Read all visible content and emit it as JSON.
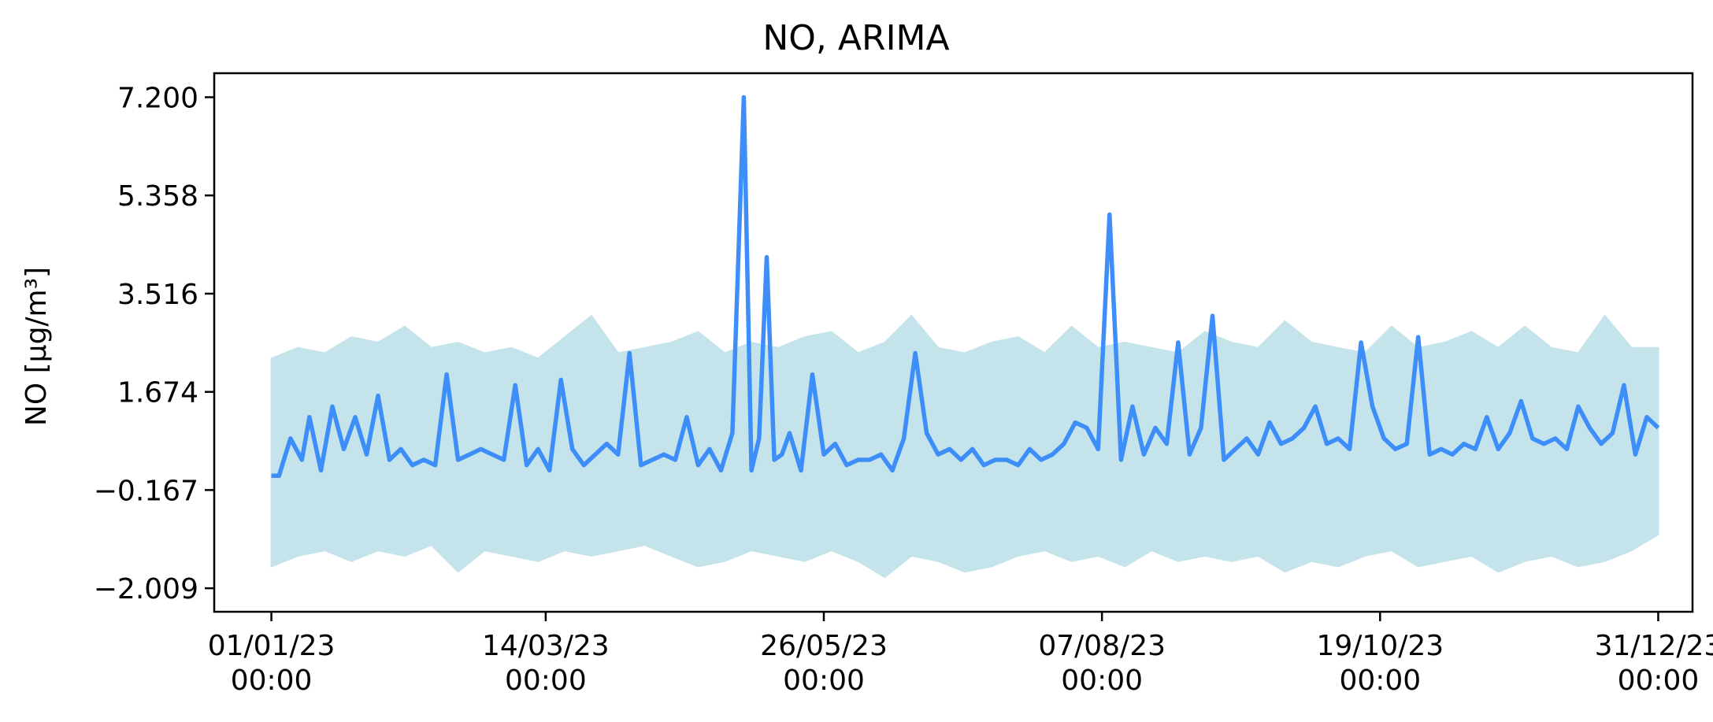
{
  "chart_data": {
    "type": "line",
    "title": "NO, ARIMA",
    "xlabel": "",
    "ylabel": "NO [µg/m³]",
    "ylim": [
      -2.45,
      7.65
    ],
    "xlim": [
      "2022-12-17",
      "2024-01-09"
    ],
    "grid": false,
    "legend": "none",
    "y_ticks": [
      "7.200",
      "5.358",
      "3.516",
      "1.674",
      "−0.167",
      "−2.009"
    ],
    "y_tick_values": [
      7.2,
      5.358,
      3.516,
      1.674,
      -0.167,
      -2.009
    ],
    "x_ticks": [
      {
        "date": "2023-01-01",
        "label": [
          "01/01/23",
          "00:00"
        ]
      },
      {
        "date": "2023-03-14",
        "label": [
          "14/03/23",
          "00:00"
        ]
      },
      {
        "date": "2023-05-26",
        "label": [
          "26/05/23",
          "00:00"
        ]
      },
      {
        "date": "2023-08-07",
        "label": [
          "07/08/23",
          "00:00"
        ]
      },
      {
        "date": "2023-10-19",
        "label": [
          "19/10/23",
          "00:00"
        ]
      },
      {
        "date": "2023-12-31",
        "label": [
          "31/12/23",
          "00:00"
        ]
      }
    ],
    "series": [
      {
        "color": "#c5e3ea",
        "kind": "band",
        "x": [
          "2023-01-01",
          "2023-01-08",
          "2023-01-15",
          "2023-01-22",
          "2023-01-29",
          "2023-02-05",
          "2023-02-12",
          "2023-02-19",
          "2023-02-26",
          "2023-03-05",
          "2023-03-12",
          "2023-03-19",
          "2023-03-26",
          "2023-04-02",
          "2023-04-09",
          "2023-04-16",
          "2023-04-23",
          "2023-04-30",
          "2023-05-07",
          "2023-05-14",
          "2023-05-21",
          "2023-05-28",
          "2023-06-04",
          "2023-06-11",
          "2023-06-18",
          "2023-06-25",
          "2023-07-02",
          "2023-07-09",
          "2023-07-16",
          "2023-07-23",
          "2023-07-30",
          "2023-08-06",
          "2023-08-13",
          "2023-08-20",
          "2023-08-27",
          "2023-09-03",
          "2023-09-10",
          "2023-09-17",
          "2023-09-24",
          "2023-10-01",
          "2023-10-08",
          "2023-10-15",
          "2023-10-22",
          "2023-10-29",
          "2023-11-05",
          "2023-11-12",
          "2023-11-19",
          "2023-11-26",
          "2023-12-03",
          "2023-12-10",
          "2023-12-17",
          "2023-12-24",
          "2023-12-31"
        ],
        "upper": [
          2.3,
          2.5,
          2.4,
          2.7,
          2.6,
          2.9,
          2.5,
          2.6,
          2.4,
          2.5,
          2.3,
          2.7,
          3.1,
          2.4,
          2.5,
          2.6,
          2.8,
          2.4,
          2.6,
          2.5,
          2.7,
          2.8,
          2.4,
          2.6,
          3.1,
          2.5,
          2.4,
          2.6,
          2.7,
          2.4,
          2.9,
          2.5,
          2.6,
          2.5,
          2.4,
          2.8,
          2.6,
          2.5,
          3.0,
          2.6,
          2.5,
          2.4,
          2.9,
          2.5,
          2.6,
          2.8,
          2.5,
          2.9,
          2.5,
          2.4,
          3.1,
          2.5,
          2.5
        ],
        "lower": [
          -1.6,
          -1.4,
          -1.3,
          -1.5,
          -1.3,
          -1.4,
          -1.2,
          -1.7,
          -1.3,
          -1.4,
          -1.5,
          -1.3,
          -1.4,
          -1.3,
          -1.2,
          -1.4,
          -1.6,
          -1.5,
          -1.3,
          -1.4,
          -1.5,
          -1.3,
          -1.5,
          -1.8,
          -1.4,
          -1.5,
          -1.7,
          -1.6,
          -1.4,
          -1.3,
          -1.5,
          -1.4,
          -1.6,
          -1.3,
          -1.5,
          -1.4,
          -1.5,
          -1.4,
          -1.7,
          -1.5,
          -1.6,
          -1.4,
          -1.3,
          -1.6,
          -1.5,
          -1.4,
          -1.7,
          -1.5,
          -1.4,
          -1.6,
          -1.5,
          -1.3,
          -1.0
        ]
      },
      {
        "color": "#3d8ef8",
        "kind": "line",
        "x": [
          "2023-01-01",
          "2023-01-03",
          "2023-01-06",
          "2023-01-09",
          "2023-01-11",
          "2023-01-14",
          "2023-01-17",
          "2023-01-20",
          "2023-01-23",
          "2023-01-26",
          "2023-01-29",
          "2023-02-01",
          "2023-02-04",
          "2023-02-07",
          "2023-02-10",
          "2023-02-13",
          "2023-02-16",
          "2023-02-19",
          "2023-02-22",
          "2023-02-25",
          "2023-02-28",
          "2023-03-03",
          "2023-03-06",
          "2023-03-09",
          "2023-03-12",
          "2023-03-15",
          "2023-03-18",
          "2023-03-21",
          "2023-03-24",
          "2023-03-27",
          "2023-03-30",
          "2023-04-02",
          "2023-04-05",
          "2023-04-08",
          "2023-04-11",
          "2023-04-14",
          "2023-04-17",
          "2023-04-20",
          "2023-04-23",
          "2023-04-26",
          "2023-04-29",
          "2023-05-02",
          "2023-05-05",
          "2023-05-07",
          "2023-05-09",
          "2023-05-11",
          "2023-05-13",
          "2023-05-15",
          "2023-05-17",
          "2023-05-20",
          "2023-05-23",
          "2023-05-26",
          "2023-05-29",
          "2023-06-01",
          "2023-06-04",
          "2023-06-07",
          "2023-06-10",
          "2023-06-13",
          "2023-06-16",
          "2023-06-19",
          "2023-06-22",
          "2023-06-25",
          "2023-06-28",
          "2023-07-01",
          "2023-07-04",
          "2023-07-07",
          "2023-07-10",
          "2023-07-13",
          "2023-07-16",
          "2023-07-19",
          "2023-07-22",
          "2023-07-25",
          "2023-07-28",
          "2023-07-31",
          "2023-08-03",
          "2023-08-06",
          "2023-08-09",
          "2023-08-12",
          "2023-08-15",
          "2023-08-18",
          "2023-08-21",
          "2023-08-24",
          "2023-08-27",
          "2023-08-30",
          "2023-09-02",
          "2023-09-05",
          "2023-09-08",
          "2023-09-11",
          "2023-09-14",
          "2023-09-17",
          "2023-09-20",
          "2023-09-23",
          "2023-09-26",
          "2023-09-29",
          "2023-10-02",
          "2023-10-05",
          "2023-10-08",
          "2023-10-11",
          "2023-10-14",
          "2023-10-17",
          "2023-10-20",
          "2023-10-23",
          "2023-10-26",
          "2023-10-29",
          "2023-11-01",
          "2023-11-04",
          "2023-11-07",
          "2023-11-10",
          "2023-11-13",
          "2023-11-16",
          "2023-11-19",
          "2023-11-22",
          "2023-11-25",
          "2023-11-28",
          "2023-12-01",
          "2023-12-04",
          "2023-12-07",
          "2023-12-10",
          "2023-12-13",
          "2023-12-16",
          "2023-12-19",
          "2023-12-22",
          "2023-12-25",
          "2023-12-28",
          "2023-12-31"
        ],
        "values": [
          0.1,
          0.1,
          0.8,
          0.4,
          1.2,
          0.2,
          1.4,
          0.6,
          1.2,
          0.5,
          1.6,
          0.4,
          0.6,
          0.3,
          0.4,
          0.3,
          2.0,
          0.4,
          0.5,
          0.6,
          0.5,
          0.4,
          1.8,
          0.3,
          0.6,
          0.2,
          1.9,
          0.6,
          0.3,
          0.5,
          0.7,
          0.5,
          2.4,
          0.3,
          0.4,
          0.5,
          0.4,
          1.2,
          0.3,
          0.6,
          0.2,
          0.9,
          7.2,
          0.2,
          0.8,
          4.2,
          0.4,
          0.5,
          0.9,
          0.2,
          2.0,
          0.5,
          0.7,
          0.3,
          0.4,
          0.4,
          0.5,
          0.2,
          0.8,
          2.4,
          0.9,
          0.5,
          0.6,
          0.4,
          0.6,
          0.3,
          0.4,
          0.4,
          0.3,
          0.6,
          0.4,
          0.5,
          0.7,
          1.1,
          1.0,
          0.6,
          5.0,
          0.4,
          1.4,
          0.5,
          1.0,
          0.7,
          2.6,
          0.5,
          1.0,
          3.1,
          0.4,
          0.6,
          0.8,
          0.5,
          1.1,
          0.7,
          0.8,
          1.0,
          1.4,
          0.7,
          0.8,
          0.6,
          2.6,
          1.4,
          0.8,
          0.6,
          0.7,
          2.7,
          0.5,
          0.6,
          0.5,
          0.7,
          0.6,
          1.2,
          0.6,
          0.9,
          1.5,
          0.8,
          0.7,
          0.8,
          0.6,
          1.4,
          1.0,
          0.7,
          0.9,
          1.8,
          0.5,
          1.2,
          1.0
        ]
      }
    ]
  }
}
